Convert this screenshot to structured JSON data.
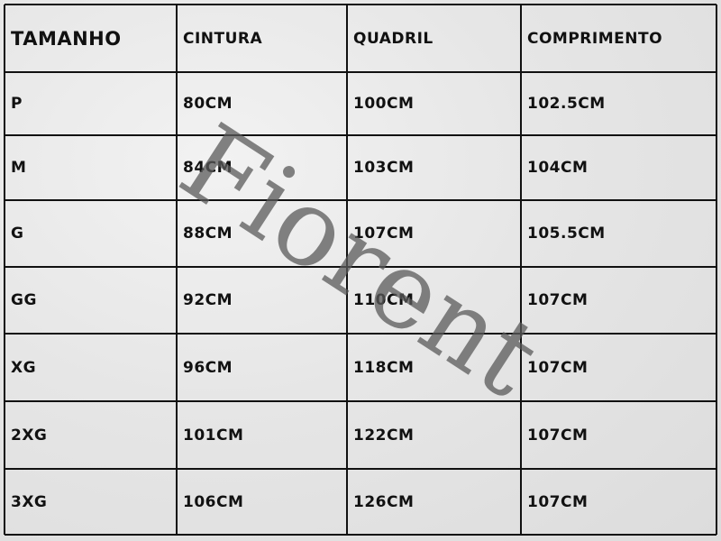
{
  "table": {
    "header": [
      "TAMANHO",
      "CINTURA",
      "QUADRIL",
      "COMPRIMENTO"
    ],
    "rows": [
      [
        "P",
        "80CM",
        "100CM",
        "102.5CM"
      ],
      [
        "M",
        "84CM",
        "103CM",
        "104CM"
      ],
      [
        "G",
        "88CM",
        "107CM",
        "105.5CM"
      ],
      [
        "GG",
        "92CM",
        "110CM",
        "107CM"
      ],
      [
        "XG",
        "96CM",
        "118CM",
        "107CM"
      ],
      [
        "2XG",
        "101CM",
        "122CM",
        "107CM"
      ],
      [
        "3XG",
        "106CM",
        "126CM",
        "107CM"
      ]
    ]
  },
  "watermark": "Fiorent"
}
